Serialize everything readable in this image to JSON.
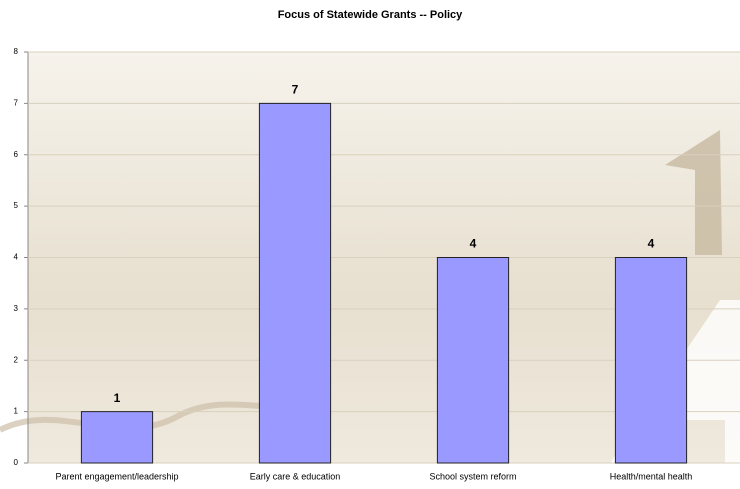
{
  "chart_data": {
    "type": "bar",
    "title": "Focus of Statewide Grants -- Policy",
    "categories": [
      "Parent engagement/leadership",
      "Early care & education",
      "School system reform",
      "Health/mental health"
    ],
    "values": [
      1,
      7,
      4,
      4
    ],
    "color": "#9999ff",
    "ylim": [
      0,
      8
    ],
    "yticks": [
      0,
      1,
      2,
      3,
      4,
      5,
      6,
      7,
      8
    ],
    "grid": true
  }
}
